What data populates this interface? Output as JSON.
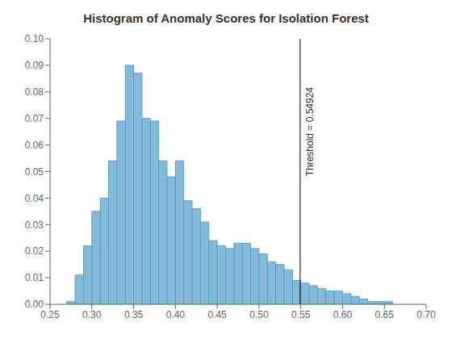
{
  "chart_data": {
    "type": "histogram",
    "title": "Histogram of Anomaly Scores for Isolation Forest",
    "bins": [
      0.27,
      0.28,
      0.29,
      0.3,
      0.31,
      0.32,
      0.33,
      0.34,
      0.35,
      0.36,
      0.37,
      0.38,
      0.39,
      0.4,
      0.41,
      0.42,
      0.43,
      0.44,
      0.45,
      0.46,
      0.47,
      0.48,
      0.49,
      0.5,
      0.51,
      0.52,
      0.53,
      0.54,
      0.55,
      0.56,
      0.57,
      0.58,
      0.59,
      0.6,
      0.61,
      0.62,
      0.63,
      0.64,
      0.65,
      0.66,
      0.67,
      0.68,
      0.69
    ],
    "values": [
      0.001,
      0.011,
      0.022,
      0.035,
      0.04,
      0.054,
      0.069,
      0.09,
      0.087,
      0.07,
      0.069,
      0.054,
      0.048,
      0.054,
      0.039,
      0.036,
      0.031,
      0.024,
      0.022,
      0.021,
      0.023,
      0.023,
      0.021,
      0.019,
      0.016,
      0.015,
      0.013,
      0.009,
      0.008,
      0.007,
      0.006,
      0.005,
      0.005,
      0.004,
      0.003,
      0.002,
      0.001,
      0.001,
      0.001,
      0.0,
      0.0,
      0.0
    ],
    "color": "#5ba3c9",
    "vline": {
      "x": 0.54924,
      "label": "Threshold = 0.54924",
      "color": "black"
    },
    "xlim": [
      0.25,
      0.7
    ],
    "ylim": [
      0,
      0.1
    ],
    "xticks": [
      0.25,
      {
        "value": 0.3,
        "label": "0.30"
      },
      0.35,
      {
        "value": 0.4,
        "label": "0.40"
      },
      0.45,
      {
        "value": 0.5,
        "label": "0.50"
      },
      0.55,
      {
        "value": 0.6,
        "label": "0.60"
      },
      0.65,
      {
        "value": 0.7,
        "label": "0.70"
      }
    ],
    "yticks": [
      {
        "value": 0,
        "label": "0.00"
      },
      0.01,
      0.02,
      0.03,
      0.04,
      0.05,
      0.06,
      0.07,
      0.08,
      0.09,
      {
        "value": 0.1,
        "label": "0.10"
      }
    ],
    "grid": false
  }
}
